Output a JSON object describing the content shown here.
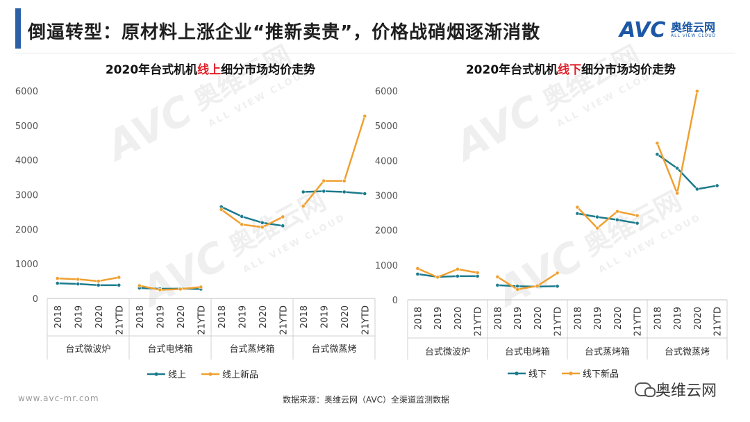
{
  "header": {
    "title": "倒逼转型：原材料上涨企业“推新卖贵”，价格战硝烟逐渐消散"
  },
  "brand": {
    "mark": "AVC",
    "cn": "奥维云网",
    "en": "ALL VIEW CLOUD",
    "color": "#1b57a5"
  },
  "footer": {
    "website": "www.avc-mr.com",
    "source": "数据来源：奥维云网（AVC）全渠道监测数据",
    "wechat_name": "奥维云网"
  },
  "watermark": {
    "mark": "AVC",
    "cn": "奥维云网",
    "en": "ALL VIEW CLOUD"
  },
  "chart_data": [
    {
      "type": "line",
      "title": {
        "pre": "2020年台式机机",
        "highlight": "线上",
        "post": "细分市场均价走势"
      },
      "highlight_color": "#e0212a",
      "ylim": [
        0,
        6000
      ],
      "yticks": [
        "0",
        "1000",
        "2000",
        "3000",
        "4000",
        "5000",
        "6000"
      ],
      "groups": [
        "台式微波炉",
        "台式电烤箱",
        "台式蒸烤箱",
        "台式微蒸烤"
      ],
      "periods": [
        "2018",
        "2019",
        "2020",
        "21YTD"
      ],
      "series": [
        {
          "name": "线上",
          "color": "#1c7b8c",
          "values": [
            [
              440,
              420,
              385,
              385
            ],
            [
              300,
              280,
              285,
              270
            ],
            [
              2650,
              2370,
              2190,
              2100
            ],
            [
              3080,
              3100,
              3080,
              3030
            ]
          ]
        },
        {
          "name": "线上新品",
          "color": "#f0a030",
          "values": [
            [
              580,
              555,
              500,
              610
            ],
            [
              370,
              250,
              270,
              330
            ],
            [
              2570,
              2140,
              2060,
              2360
            ],
            [
              2670,
              3400,
              3400,
              5270
            ]
          ]
        }
      ],
      "grid": false,
      "legend_position": "bottom"
    },
    {
      "type": "line",
      "title": {
        "pre": "2020年台式机机",
        "highlight": "线下",
        "post": "细分市场均价走势"
      },
      "highlight_color": "#e0212a",
      "ylim": [
        0,
        6000
      ],
      "yticks": [
        "0",
        "1000",
        "2000",
        "3000",
        "4000",
        "5000",
        "6000"
      ],
      "groups": [
        "台式微波炉",
        "台式电烤箱",
        "台式蒸烤箱",
        "台式微蒸烤"
      ],
      "periods": [
        "2018",
        "2019",
        "2020",
        "21YTD"
      ],
      "series": [
        {
          "name": "线下",
          "color": "#1c7b8c",
          "values": [
            [
              740,
              660,
              680,
              680
            ],
            [
              420,
              390,
              380,
              390
            ],
            [
              2480,
              2380,
              2300,
              2200
            ],
            [
              4180,
              3780,
              3180,
              3280
            ]
          ]
        },
        {
          "name": "线下新品",
          "color": "#f0a030",
          "values": [
            [
              900,
              650,
              880,
              780
            ],
            [
              660,
              300,
              400,
              770
            ],
            [
              2660,
              2060,
              2540,
              2420
            ],
            [
              4500,
              3060,
              5990,
              null
            ]
          ]
        }
      ],
      "grid": false,
      "legend_position": "bottom"
    }
  ]
}
